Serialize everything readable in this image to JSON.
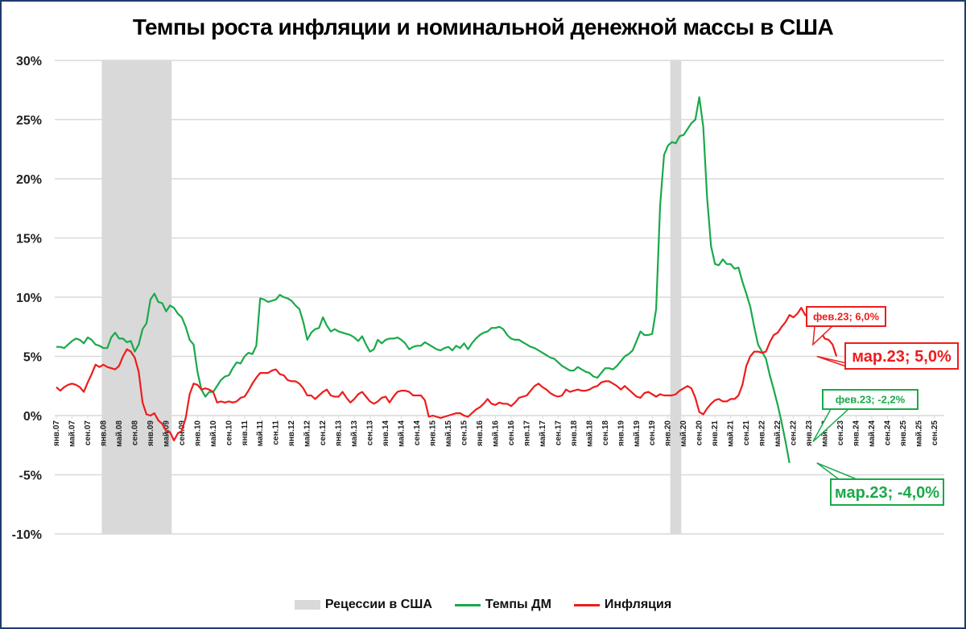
{
  "chart_data": {
    "type": "line",
    "title": "Темпы роста инфляции и номинальной денежной массы в США",
    "xlabel": "",
    "ylabel": "",
    "ylim": [
      -10,
      30
    ],
    "yticks": [
      "30%",
      "25%",
      "20%",
      "15%",
      "10%",
      "5%",
      "0%",
      "-5%",
      "-10%"
    ],
    "grid": true,
    "legend_position": "bottom",
    "x_start": "янв.07",
    "x_step_months": 1,
    "xtick_labels": [
      "янв.07",
      "май.07",
      "сен.07",
      "янв.08",
      "май.08",
      "сен.08",
      "янв.09",
      "май.09",
      "сен.09",
      "янв.10",
      "май.10",
      "сен.10",
      "янв.11",
      "май.11",
      "сен.11",
      "янв.12",
      "май.12",
      "сен.12",
      "янв.13",
      "май.13",
      "сен.13",
      "янв.14",
      "май.14",
      "сен.14",
      "янв.15",
      "май.15",
      "сен.15",
      "янв.16",
      "май.16",
      "сен.16",
      "янв.17",
      "май.17",
      "сен.17",
      "янв.18",
      "май.18",
      "сен.18",
      "янв.19",
      "май.19",
      "сен.19",
      "янв.20",
      "май.20",
      "сен.20",
      "янв.21",
      "май.21",
      "сен.21",
      "янв.22",
      "май.22",
      "сен.22",
      "янв.23",
      "май.23",
      "сен.23",
      "янв.24",
      "май.24",
      "сен.24",
      "янв.25",
      "май.25",
      "сен.25"
    ],
    "recessions": [
      {
        "start": "янв.08",
        "end": "июн.09"
      },
      {
        "start": "фев.20",
        "end": "апр.20"
      }
    ],
    "series": [
      {
        "name": "Темпы ДМ",
        "color": "#1aa94a",
        "values": [
          5.8,
          5.8,
          5.7,
          6.0,
          6.3,
          6.5,
          6.4,
          6.1,
          6.6,
          6.4,
          6.0,
          5.9,
          5.7,
          5.7,
          6.6,
          7.0,
          6.5,
          6.5,
          6.2,
          6.3,
          5.4,
          6.0,
          7.3,
          7.8,
          9.8,
          10.3,
          9.6,
          9.5,
          8.8,
          9.3,
          9.1,
          8.6,
          8.3,
          7.5,
          6.4,
          6.0,
          3.7,
          2.2,
          1.6,
          2.0,
          2.0,
          2.5,
          3.0,
          3.3,
          3.4,
          4.0,
          4.5,
          4.4,
          5.0,
          5.3,
          5.2,
          5.9,
          9.9,
          9.8,
          9.6,
          9.7,
          9.8,
          10.2,
          10.0,
          9.9,
          9.7,
          9.3,
          9.0,
          7.9,
          6.4,
          7.0,
          7.3,
          7.4,
          8.3,
          7.6,
          7.1,
          7.3,
          7.1,
          7.0,
          6.9,
          6.8,
          6.6,
          6.3,
          6.7,
          6.0,
          5.4,
          5.6,
          6.4,
          6.1,
          6.4,
          6.5,
          6.5,
          6.6,
          6.4,
          6.1,
          5.6,
          5.8,
          5.9,
          5.9,
          6.2,
          6.0,
          5.8,
          5.6,
          5.5,
          5.7,
          5.8,
          5.5,
          5.9,
          5.7,
          6.1,
          5.6,
          6.1,
          6.5,
          6.8,
          7.0,
          7.1,
          7.4,
          7.4,
          7.5,
          7.3,
          6.8,
          6.5,
          6.4,
          6.4,
          6.2,
          6.0,
          5.8,
          5.7,
          5.5,
          5.3,
          5.1,
          4.9,
          4.8,
          4.5,
          4.2,
          4.0,
          3.8,
          3.8,
          4.1,
          3.9,
          3.7,
          3.6,
          3.3,
          3.2,
          3.6,
          4.0,
          4.0,
          3.9,
          4.2,
          4.6,
          5.0,
          5.2,
          5.5,
          6.3,
          7.1,
          6.8,
          6.8,
          6.9,
          9.0,
          17.7,
          22.0,
          22.8,
          23.1,
          23.0,
          23.6,
          23.7,
          24.2,
          24.7,
          25.0,
          26.9,
          24.4,
          18.4,
          14.3,
          12.8,
          12.7,
          13.2,
          12.8,
          12.8,
          12.4,
          12.5,
          11.3,
          10.3,
          9.2,
          7.5,
          6.0,
          5.4,
          4.8,
          3.4,
          2.2,
          0.9,
          -0.6,
          -2.2,
          -4.0
        ]
      },
      {
        "name": "Инфляция",
        "color": "#ee1c1c",
        "values": [
          2.4,
          2.1,
          2.4,
          2.6,
          2.7,
          2.6,
          2.4,
          2.0,
          2.8,
          3.5,
          4.3,
          4.1,
          4.3,
          4.1,
          4.0,
          3.9,
          4.2,
          5.0,
          5.6,
          5.4,
          4.9,
          3.7,
          1.1,
          0.1,
          0.0,
          0.2,
          -0.4,
          -0.7,
          -1.3,
          -1.4,
          -2.1,
          -1.5,
          -1.3,
          -0.2,
          1.8,
          2.7,
          2.6,
          2.2,
          2.3,
          2.2,
          2.0,
          1.1,
          1.2,
          1.1,
          1.2,
          1.1,
          1.2,
          1.5,
          1.6,
          2.1,
          2.7,
          3.2,
          3.6,
          3.6,
          3.6,
          3.8,
          3.9,
          3.5,
          3.4,
          3.0,
          2.9,
          2.9,
          2.7,
          2.3,
          1.7,
          1.7,
          1.4,
          1.7,
          2.0,
          2.2,
          1.7,
          1.6,
          1.6,
          2.0,
          1.5,
          1.1,
          1.4,
          1.8,
          2.0,
          1.6,
          1.2,
          1.0,
          1.2,
          1.5,
          1.6,
          1.1,
          1.6,
          2.0,
          2.1,
          2.1,
          2.0,
          1.7,
          1.7,
          1.7,
          1.3,
          -0.1,
          0.0,
          -0.1,
          -0.2,
          -0.1,
          0.0,
          0.1,
          0.2,
          0.2,
          0.0,
          -0.1,
          0.2,
          0.5,
          0.7,
          1.0,
          1.4,
          1.0,
          0.9,
          1.1,
          1.0,
          1.0,
          0.8,
          1.1,
          1.5,
          1.6,
          1.7,
          2.1,
          2.5,
          2.7,
          2.4,
          2.2,
          1.9,
          1.7,
          1.6,
          1.7,
          2.2,
          2.0,
          2.1,
          2.2,
          2.1,
          2.1,
          2.2,
          2.4,
          2.5,
          2.8,
          2.9,
          2.9,
          2.7,
          2.5,
          2.2,
          2.5,
          2.2,
          1.9,
          1.6,
          1.5,
          1.9,
          2.0,
          1.8,
          1.6,
          1.8,
          1.7,
          1.7,
          1.7,
          1.8,
          2.1,
          2.3,
          2.5,
          2.3,
          1.5,
          0.3,
          0.1,
          0.6,
          1.0,
          1.3,
          1.4,
          1.2,
          1.2,
          1.4,
          1.4,
          1.7,
          2.6,
          4.2,
          5.0,
          5.4,
          5.4,
          5.3,
          5.4,
          6.2,
          6.8,
          7.0,
          7.5,
          7.9,
          8.5,
          8.3,
          8.6,
          9.1,
          8.5,
          8.3,
          8.2,
          7.7,
          7.1,
          6.5,
          6.4,
          6.0,
          5.0
        ]
      }
    ],
    "annotations": [
      {
        "series": "Инфляция",
        "label": "фев.23; 6,0%",
        "x": "фев.23",
        "y": 6.0
      },
      {
        "series": "Инфляция",
        "label": "мар.23; 5,0%",
        "x": "мар.23",
        "y": 5.0
      },
      {
        "series": "Темпы ДМ",
        "label": "фев.23; -2,2%",
        "x": "фев.23",
        "y": -2.2
      },
      {
        "series": "Темпы ДМ",
        "label": "мар.23; -4,0%",
        "x": "мар.23",
        "y": -4.0
      }
    ]
  },
  "legend": {
    "recession_label": "Рецессии в США",
    "m2_label": "Темпы ДМ",
    "inflation_label": "Инфляция"
  },
  "colors": {
    "m2": "#1aa94a",
    "inflation": "#ee1c1c",
    "recession": "#d9d9d9",
    "grid": "#d9d9d9",
    "frame": "#1f3a6e"
  }
}
